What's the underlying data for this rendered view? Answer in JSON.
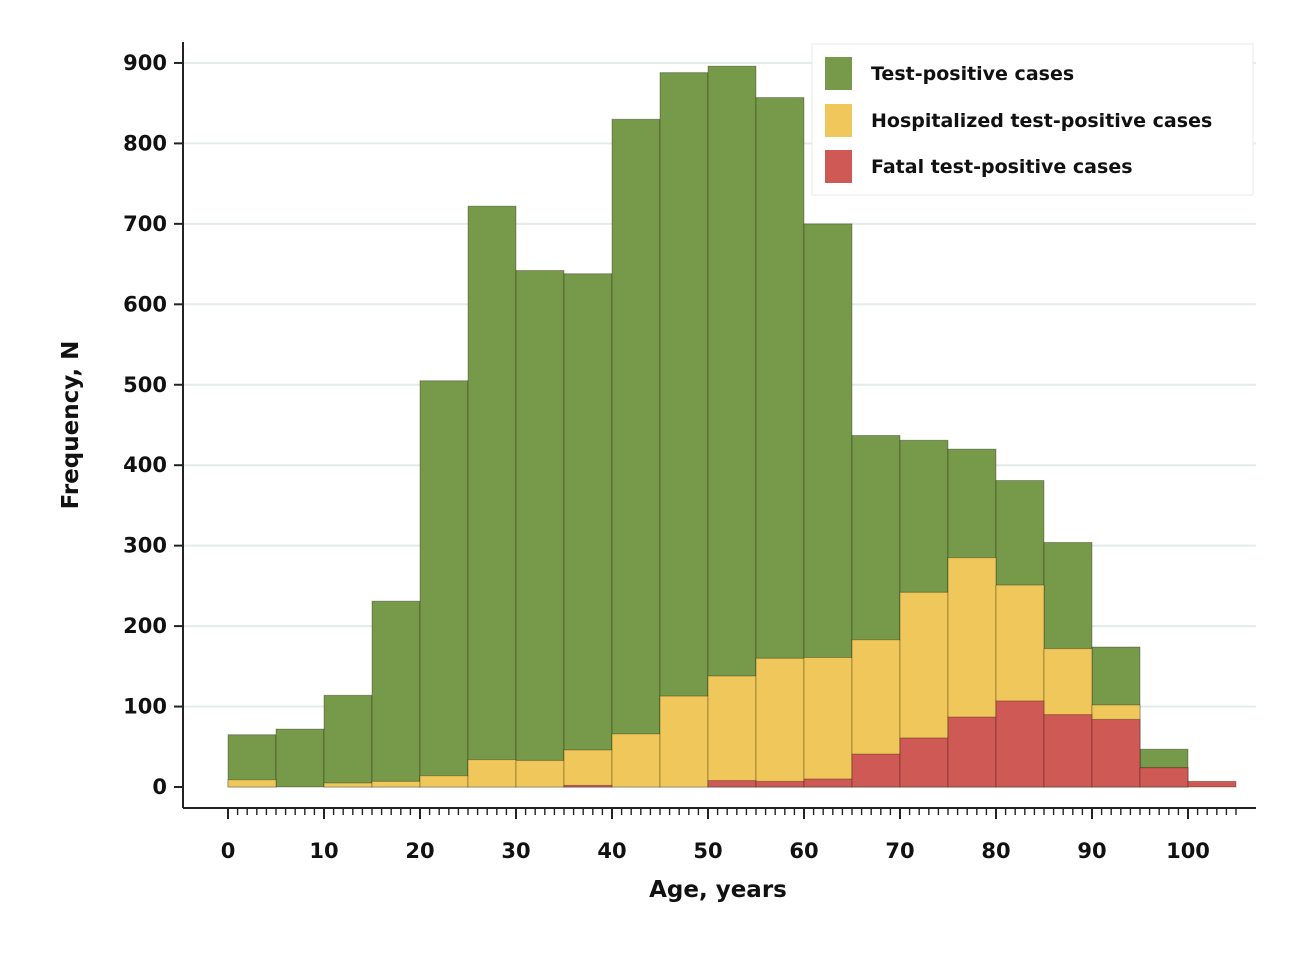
{
  "chart_data": {
    "type": "bar",
    "subtype": "overlaid-histogram",
    "xlabel": "Age, years",
    "ylabel": "Frequency, N",
    "xlim": [
      0,
      105
    ],
    "ylim": [
      0,
      900
    ],
    "x_ticks": [
      "0",
      "10",
      "20",
      "30",
      "40",
      "50",
      "60",
      "70",
      "80",
      "90",
      "100"
    ],
    "y_ticks": [
      "0",
      "100",
      "200",
      "300",
      "400",
      "500",
      "600",
      "700",
      "800",
      "900"
    ],
    "x_minor_tick_step": 1,
    "bin_width": 5,
    "bin_starts": [
      0,
      5,
      10,
      15,
      20,
      25,
      30,
      35,
      40,
      45,
      50,
      55,
      60,
      65,
      70,
      75,
      80,
      85,
      90,
      95,
      100
    ],
    "grid": "horizontal",
    "legend_position": "top-right",
    "series": [
      {
        "name": "Test-positive cases",
        "color": "#76994A",
        "values": [
          65,
          72,
          114,
          231,
          505,
          722,
          642,
          638,
          830,
          888,
          896,
          857,
          700,
          437,
          431,
          420,
          381,
          304,
          174,
          47,
          0
        ]
      },
      {
        "name": "Hospitalized test-positive cases",
        "color": "#F0C75A",
        "values": [
          9,
          0,
          5,
          7,
          14,
          34,
          33,
          46,
          66,
          113,
          138,
          160,
          161,
          183,
          242,
          285,
          251,
          172,
          102,
          24,
          0
        ]
      },
      {
        "name": "Fatal test-positive cases",
        "color": "#CF5955",
        "values": [
          0,
          0,
          0,
          0,
          0,
          0,
          0,
          2,
          0,
          0,
          8,
          7,
          10,
          41,
          61,
          87,
          107,
          90,
          84,
          24,
          7
        ]
      }
    ]
  }
}
